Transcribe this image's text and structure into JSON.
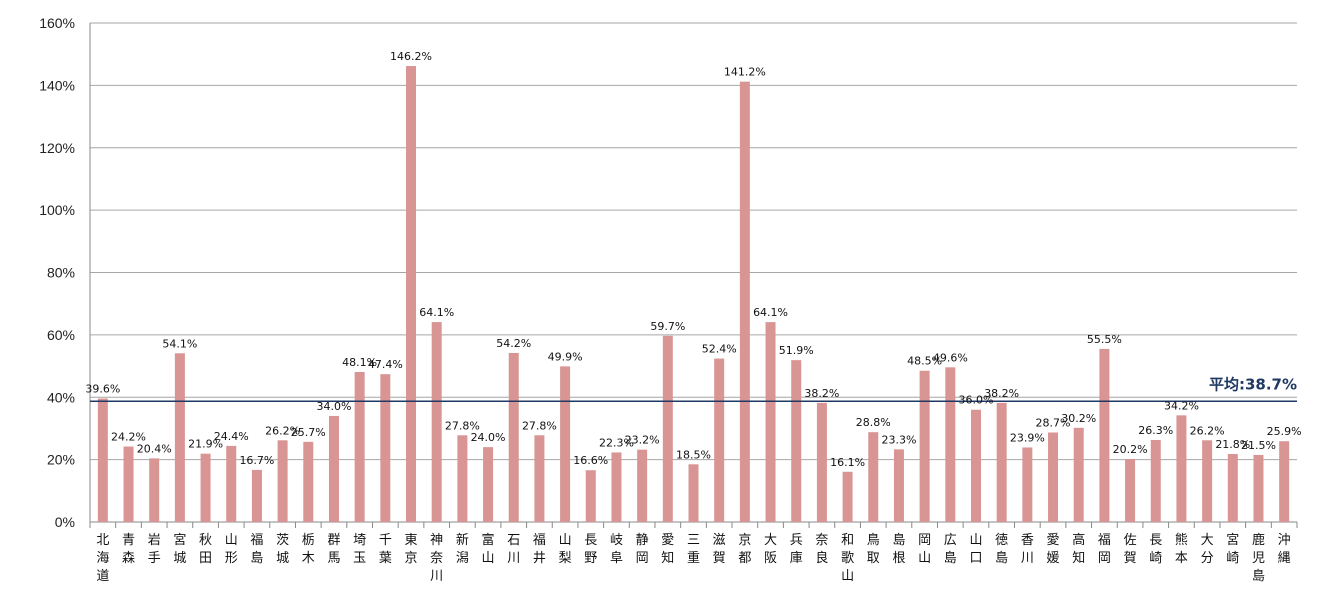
{
  "chart_data": {
    "type": "bar",
    "ylim": [
      0,
      160
    ],
    "yticks": [
      "0%",
      "20%",
      "40%",
      "60%",
      "80%",
      "100%",
      "120%",
      "140%",
      "160%"
    ],
    "grid": true,
    "bar_color": "#d99594",
    "average": {
      "value": 38.7,
      "label": "平均:38.7%",
      "color": "#1f3864"
    },
    "categories": [
      "北海道",
      "青森",
      "岩手",
      "宮城",
      "秋田",
      "山形",
      "福島",
      "茨城",
      "栃木",
      "群馬",
      "埼玉",
      "千葉",
      "東京",
      "神奈川",
      "新潟",
      "富山",
      "石川",
      "福井",
      "山梨",
      "長野",
      "岐阜",
      "静岡",
      "愛知",
      "三重",
      "滋賀",
      "京都",
      "大阪",
      "兵庫",
      "奈良",
      "和歌山",
      "鳥取",
      "島根",
      "岡山",
      "広島",
      "山口",
      "徳島",
      "香川",
      "愛媛",
      "高知",
      "福岡",
      "佐賀",
      "長崎",
      "熊本",
      "大分",
      "宮崎",
      "鹿児島",
      "沖縄"
    ],
    "values": [
      39.6,
      24.2,
      20.4,
      54.1,
      21.9,
      24.4,
      16.7,
      26.2,
      25.7,
      34.0,
      48.1,
      47.4,
      146.2,
      64.1,
      27.8,
      24.0,
      54.2,
      27.8,
      49.9,
      16.6,
      22.3,
      23.2,
      59.7,
      18.5,
      52.4,
      141.2,
      64.1,
      51.9,
      38.2,
      16.1,
      28.8,
      23.3,
      48.5,
      49.6,
      36.0,
      38.2,
      23.9,
      28.7,
      30.2,
      55.5,
      20.2,
      26.3,
      34.2,
      26.2,
      21.8,
      21.5,
      25.9
    ],
    "value_labels": [
      "39.6%",
      "24.2%",
      "20.4%",
      "54.1%",
      "21.9%",
      "24.4%",
      "16.7%",
      "26.2%",
      "25.7%",
      "34.0%",
      "48.1%",
      "47.4%",
      "146.2%",
      "64.1%",
      "27.8%",
      "24.0%",
      "54.2%",
      "27.8%",
      "49.9%",
      "16.6%",
      "22.3%",
      "23.2%",
      "59.7%",
      "18.5%",
      "52.4%",
      "141.2%",
      "64.1%",
      "51.9%",
      "38.2%",
      "16.1%",
      "28.8%",
      "23.3%",
      "48.5%",
      "49.6%",
      "36.0%",
      "38.2%",
      "23.9%",
      "28.7%",
      "30.2%",
      "55.5%",
      "20.2%",
      "26.3%",
      "34.2%",
      "26.2%",
      "21.8%",
      "21.5%",
      "25.9%"
    ]
  }
}
